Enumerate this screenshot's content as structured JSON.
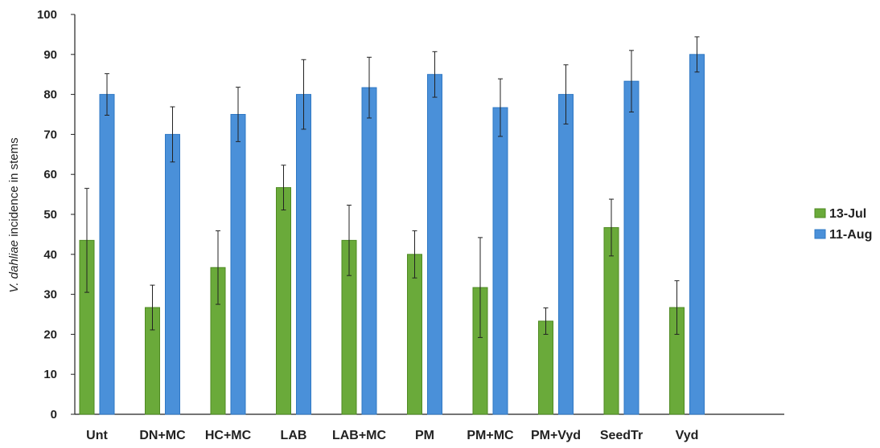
{
  "chart_data": {
    "type": "bar",
    "title": "",
    "xlabel": "",
    "ylabel": {
      "italic": "V. dahliae",
      "rest": " incidence in stems"
    },
    "ylim": [
      0,
      100
    ],
    "yticks": [
      0,
      10,
      20,
      30,
      40,
      50,
      60,
      70,
      80,
      90,
      100
    ],
    "grid": false,
    "legend_position": "right",
    "categories": [
      "Unt",
      "DN+MC",
      "HC+MC",
      "LAB",
      "LAB+MC",
      "PM",
      "PM+MC",
      "PM+Vyd",
      "SeedTr",
      "Vyd"
    ],
    "series": [
      {
        "name": "13-Jul",
        "color": "#6aaa3a",
        "values": [
          43.5,
          26.7,
          36.7,
          56.7,
          43.5,
          40.0,
          31.7,
          23.3,
          46.7,
          26.7
        ],
        "errors": [
          13,
          5.6,
          9.2,
          5.6,
          8.8,
          5.9,
          12.5,
          3.3,
          7.1,
          6.7
        ]
      },
      {
        "name": "11-Aug",
        "color": "#4a90d9",
        "values": [
          80.0,
          70.0,
          75.0,
          80.0,
          81.7,
          85.0,
          76.7,
          80.0,
          83.3,
          90.0
        ],
        "errors": [
          5.2,
          6.9,
          6.8,
          8.7,
          7.6,
          5.7,
          7.2,
          7.4,
          7.7,
          4.4
        ]
      }
    ]
  }
}
